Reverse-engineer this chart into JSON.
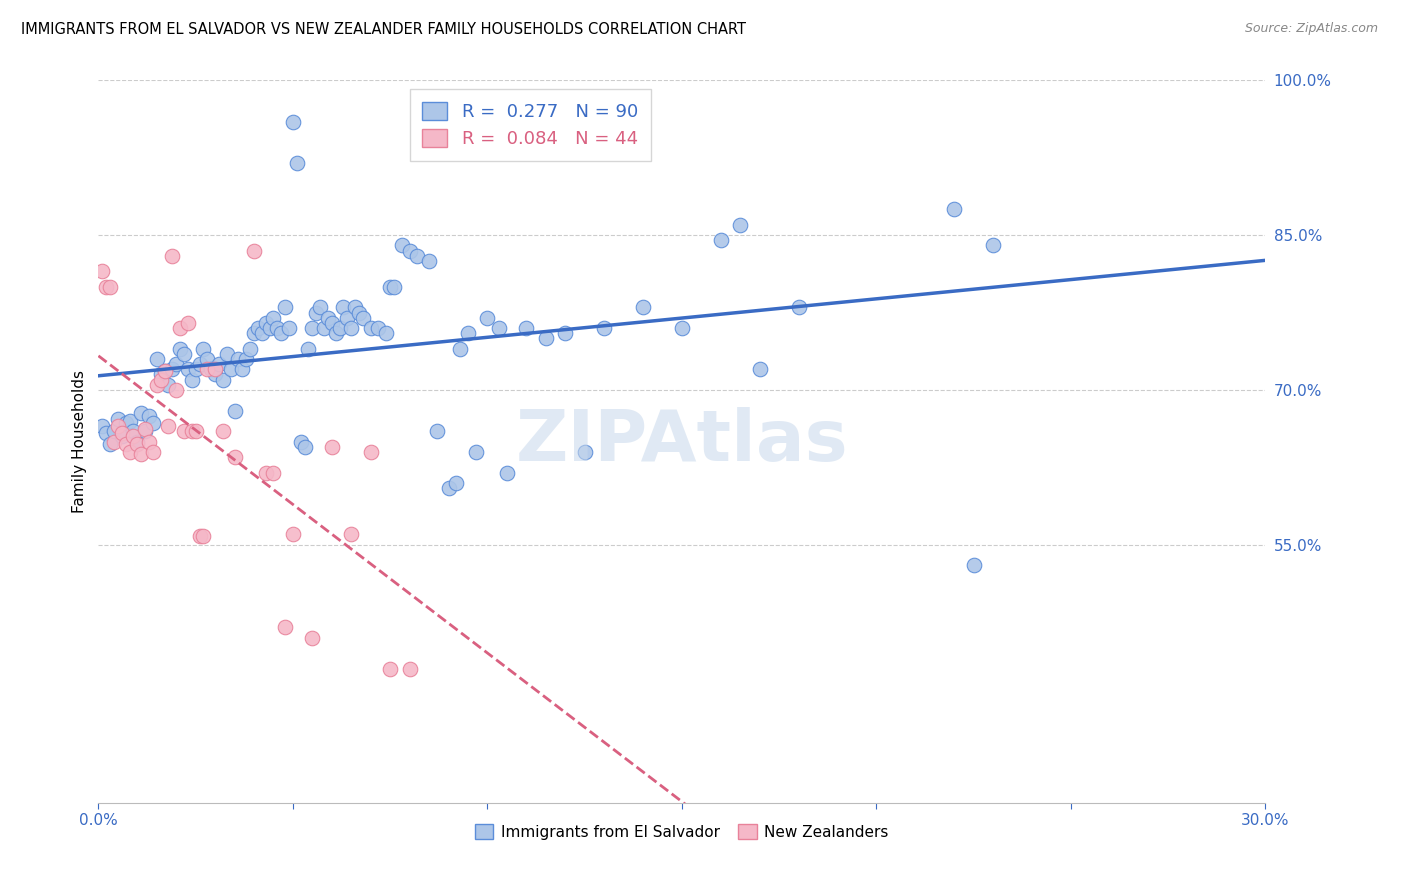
{
  "title": "IMMIGRANTS FROM EL SALVADOR VS NEW ZEALANDER FAMILY HOUSEHOLDS CORRELATION CHART",
  "source_text": "Source: ZipAtlas.com",
  "ylabel": "Family Households",
  "watermark": "ZIPAtlas",
  "xlim": [
    0.0,
    0.3
  ],
  "ylim": [
    0.3,
    1.0
  ],
  "xticks": [
    0.0,
    0.05,
    0.1,
    0.15,
    0.2,
    0.25,
    0.3
  ],
  "xtick_labels": [
    "0.0%",
    "",
    "",
    "",
    "",
    "",
    "30.0%"
  ],
  "yticks": [
    0.55,
    0.7,
    0.85,
    1.0
  ],
  "ytick_labels": [
    "55.0%",
    "70.0%",
    "85.0%",
    "100.0%"
  ],
  "blue_fill": "#adc6e8",
  "pink_fill": "#f5b8c8",
  "blue_edge": "#5b8dd9",
  "pink_edge": "#e8829a",
  "blue_line": "#3a6bc4",
  "pink_line": "#d96080",
  "figsize": [
    14.06,
    8.92
  ],
  "dpi": 100,
  "blue_scatter": [
    [
      0.001,
      0.665
    ],
    [
      0.002,
      0.658
    ],
    [
      0.003,
      0.648
    ],
    [
      0.004,
      0.66
    ],
    [
      0.005,
      0.672
    ],
    [
      0.006,
      0.655
    ],
    [
      0.007,
      0.668
    ],
    [
      0.008,
      0.67
    ],
    [
      0.009,
      0.66
    ],
    [
      0.01,
      0.65
    ],
    [
      0.011,
      0.678
    ],
    [
      0.012,
      0.66
    ],
    [
      0.013,
      0.675
    ],
    [
      0.014,
      0.668
    ],
    [
      0.015,
      0.73
    ],
    [
      0.016,
      0.715
    ],
    [
      0.017,
      0.718
    ],
    [
      0.018,
      0.705
    ],
    [
      0.019,
      0.72
    ],
    [
      0.02,
      0.725
    ],
    [
      0.021,
      0.74
    ],
    [
      0.022,
      0.735
    ],
    [
      0.023,
      0.72
    ],
    [
      0.024,
      0.71
    ],
    [
      0.025,
      0.72
    ],
    [
      0.026,
      0.725
    ],
    [
      0.027,
      0.74
    ],
    [
      0.028,
      0.73
    ],
    [
      0.029,
      0.72
    ],
    [
      0.03,
      0.715
    ],
    [
      0.031,
      0.725
    ],
    [
      0.032,
      0.71
    ],
    [
      0.033,
      0.735
    ],
    [
      0.034,
      0.72
    ],
    [
      0.035,
      0.68
    ],
    [
      0.036,
      0.73
    ],
    [
      0.037,
      0.72
    ],
    [
      0.038,
      0.73
    ],
    [
      0.039,
      0.74
    ],
    [
      0.04,
      0.755
    ],
    [
      0.041,
      0.76
    ],
    [
      0.042,
      0.755
    ],
    [
      0.043,
      0.765
    ],
    [
      0.044,
      0.76
    ],
    [
      0.045,
      0.77
    ],
    [
      0.046,
      0.76
    ],
    [
      0.047,
      0.755
    ],
    [
      0.048,
      0.78
    ],
    [
      0.049,
      0.76
    ],
    [
      0.05,
      0.96
    ],
    [
      0.051,
      0.92
    ],
    [
      0.052,
      0.65
    ],
    [
      0.053,
      0.645
    ],
    [
      0.054,
      0.74
    ],
    [
      0.055,
      0.76
    ],
    [
      0.056,
      0.775
    ],
    [
      0.057,
      0.78
    ],
    [
      0.058,
      0.76
    ],
    [
      0.059,
      0.77
    ],
    [
      0.06,
      0.765
    ],
    [
      0.061,
      0.755
    ],
    [
      0.062,
      0.76
    ],
    [
      0.063,
      0.78
    ],
    [
      0.064,
      0.77
    ],
    [
      0.065,
      0.76
    ],
    [
      0.066,
      0.78
    ],
    [
      0.067,
      0.775
    ],
    [
      0.068,
      0.77
    ],
    [
      0.07,
      0.76
    ],
    [
      0.072,
      0.76
    ],
    [
      0.074,
      0.755
    ],
    [
      0.075,
      0.8
    ],
    [
      0.076,
      0.8
    ],
    [
      0.078,
      0.84
    ],
    [
      0.08,
      0.835
    ],
    [
      0.082,
      0.83
    ],
    [
      0.085,
      0.825
    ],
    [
      0.087,
      0.66
    ],
    [
      0.09,
      0.605
    ],
    [
      0.092,
      0.61
    ],
    [
      0.093,
      0.74
    ],
    [
      0.095,
      0.755
    ],
    [
      0.097,
      0.64
    ],
    [
      0.1,
      0.77
    ],
    [
      0.103,
      0.76
    ],
    [
      0.105,
      0.62
    ],
    [
      0.11,
      0.76
    ],
    [
      0.115,
      0.75
    ],
    [
      0.12,
      0.755
    ],
    [
      0.125,
      0.64
    ],
    [
      0.13,
      0.76
    ],
    [
      0.14,
      0.78
    ],
    [
      0.15,
      0.76
    ],
    [
      0.16,
      0.845
    ],
    [
      0.165,
      0.86
    ],
    [
      0.17,
      0.72
    ],
    [
      0.18,
      0.78
    ],
    [
      0.22,
      0.875
    ],
    [
      0.225,
      0.53
    ],
    [
      0.23,
      0.84
    ]
  ],
  "pink_scatter": [
    [
      0.001,
      0.815
    ],
    [
      0.002,
      0.8
    ],
    [
      0.003,
      0.8
    ],
    [
      0.004,
      0.65
    ],
    [
      0.005,
      0.665
    ],
    [
      0.006,
      0.658
    ],
    [
      0.007,
      0.648
    ],
    [
      0.008,
      0.64
    ],
    [
      0.009,
      0.655
    ],
    [
      0.01,
      0.648
    ],
    [
      0.011,
      0.638
    ],
    [
      0.012,
      0.662
    ],
    [
      0.013,
      0.65
    ],
    [
      0.014,
      0.64
    ],
    [
      0.015,
      0.705
    ],
    [
      0.016,
      0.71
    ],
    [
      0.017,
      0.718
    ],
    [
      0.018,
      0.665
    ],
    [
      0.019,
      0.83
    ],
    [
      0.02,
      0.7
    ],
    [
      0.021,
      0.76
    ],
    [
      0.022,
      0.66
    ],
    [
      0.023,
      0.765
    ],
    [
      0.024,
      0.66
    ],
    [
      0.025,
      0.66
    ],
    [
      0.026,
      0.558
    ],
    [
      0.027,
      0.558
    ],
    [
      0.028,
      0.72
    ],
    [
      0.03,
      0.72
    ],
    [
      0.032,
      0.66
    ],
    [
      0.035,
      0.635
    ],
    [
      0.04,
      0.835
    ],
    [
      0.043,
      0.62
    ],
    [
      0.045,
      0.62
    ],
    [
      0.048,
      0.47
    ],
    [
      0.05,
      0.56
    ],
    [
      0.055,
      0.46
    ],
    [
      0.06,
      0.645
    ],
    [
      0.065,
      0.56
    ],
    [
      0.07,
      0.64
    ],
    [
      0.075,
      0.43
    ],
    [
      0.08,
      0.43
    ]
  ]
}
